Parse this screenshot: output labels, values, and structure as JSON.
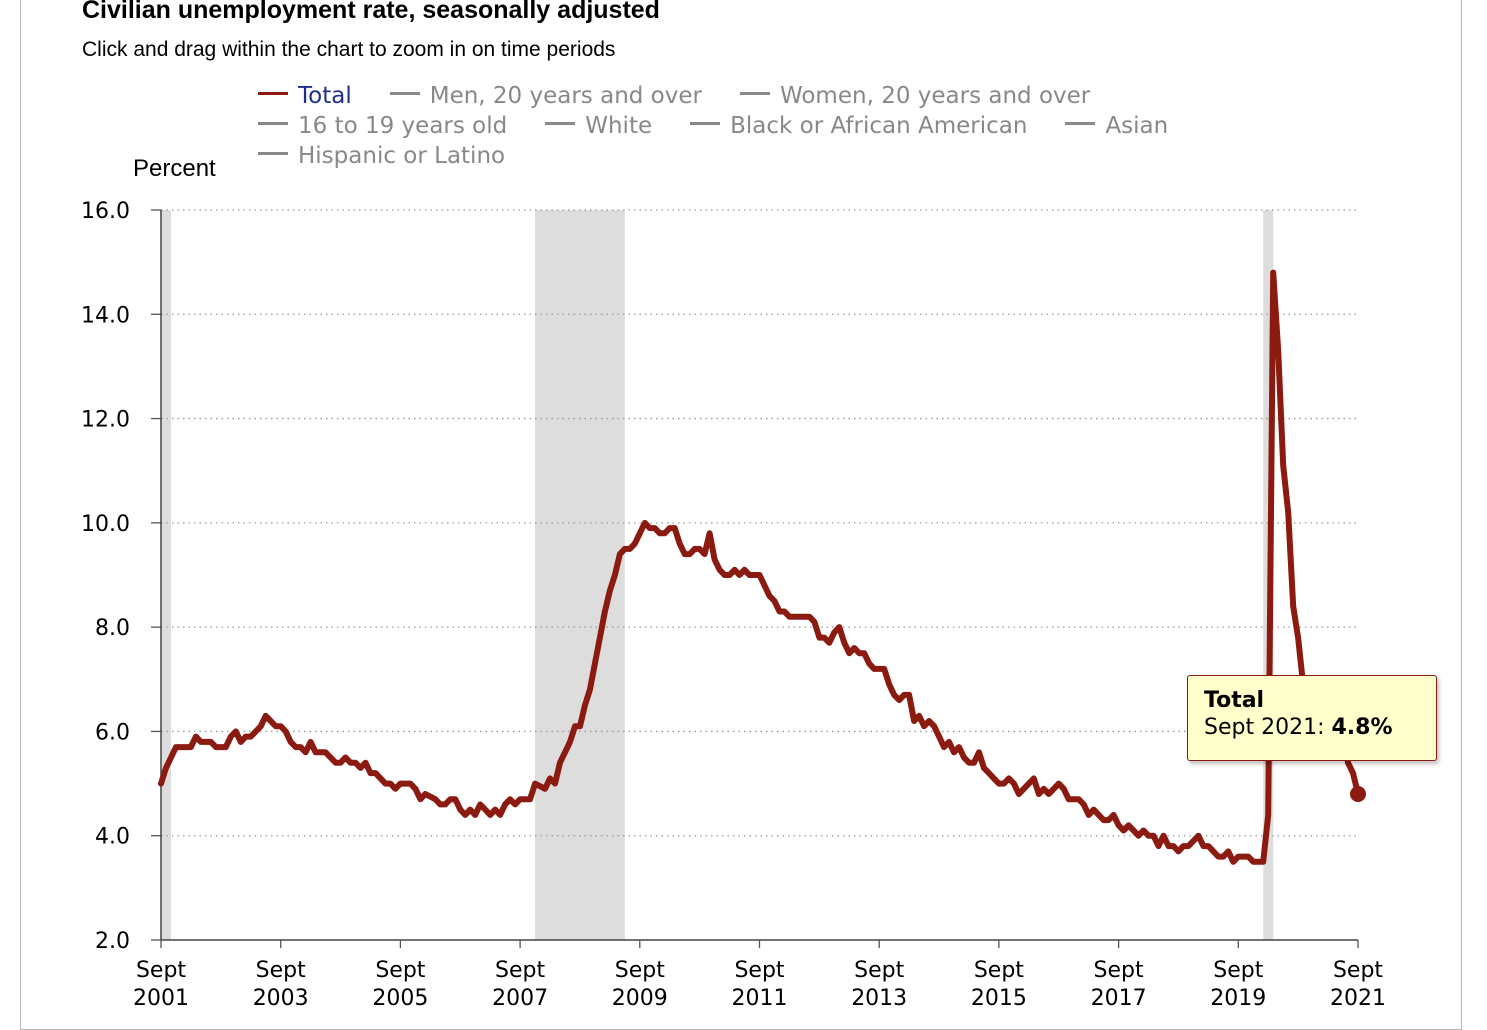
{
  "header": {
    "title": "Civilian unemployment rate, seasonally adjusted",
    "subtitle": "Click and drag within the chart to zoom in on time periods"
  },
  "legend": {
    "items": [
      {
        "label": "Total",
        "color": "#8b1a10",
        "active": true
      },
      {
        "label": "Men, 20 years and over",
        "color": "#888888",
        "active": false
      },
      {
        "label": "Women, 20 years and over",
        "color": "#888888",
        "active": false
      },
      {
        "label": "16 to 19 years old",
        "color": "#888888",
        "active": false
      },
      {
        "label": "White",
        "color": "#888888",
        "active": false
      },
      {
        "label": "Black or African American",
        "color": "#888888",
        "active": false
      },
      {
        "label": "Asian",
        "color": "#888888",
        "active": false
      },
      {
        "label": "Hispanic or Latino",
        "color": "#888888",
        "active": false
      }
    ]
  },
  "tooltip": {
    "series": "Total",
    "period": "Sept 2021: ",
    "value": "4.8%"
  },
  "chart_data": {
    "type": "line",
    "title": "Civilian unemployment rate, seasonally adjusted",
    "ylabel": "Percent",
    "xlabel": "",
    "ylim": [
      2.0,
      16.0
    ],
    "xlim": [
      "2001-09",
      "2021-09"
    ],
    "yticks": [
      "2.0",
      "4.0",
      "6.0",
      "8.0",
      "10.0",
      "12.0",
      "14.0",
      "16.0"
    ],
    "xticks": [
      {
        "month": "Sept",
        "year": "2001",
        "at": "2001-09"
      },
      {
        "month": "Sept",
        "year": "2003",
        "at": "2003-09"
      },
      {
        "month": "Sept",
        "year": "2005",
        "at": "2005-09"
      },
      {
        "month": "Sept",
        "year": "2007",
        "at": "2007-09"
      },
      {
        "month": "Sept",
        "year": "2009",
        "at": "2009-09"
      },
      {
        "month": "Sept",
        "year": "2011",
        "at": "2011-09"
      },
      {
        "month": "Sept",
        "year": "2013",
        "at": "2013-09"
      },
      {
        "month": "Sept",
        "year": "2015",
        "at": "2015-09"
      },
      {
        "month": "Sept",
        "year": "2017",
        "at": "2017-09"
      },
      {
        "month": "Sept",
        "year": "2019",
        "at": "2019-09"
      },
      {
        "month": "Sept",
        "year": "2021",
        "at": "2021-09"
      }
    ],
    "grid": true,
    "legend_position": "top",
    "recessions": [
      {
        "start": "2001-09",
        "end": "2001-11"
      },
      {
        "start": "2007-12",
        "end": "2009-06"
      },
      {
        "start": "2020-02",
        "end": "2020-04"
      }
    ],
    "recession_color": "#dddddd",
    "series": [
      {
        "name": "Total",
        "color": "#8b1a10",
        "points": [
          [
            "2001-09",
            5.0
          ],
          [
            "2001-10",
            5.3
          ],
          [
            "2001-11",
            5.5
          ],
          [
            "2001-12",
            5.7
          ],
          [
            "2002-03",
            5.7
          ],
          [
            "2002-04",
            5.9
          ],
          [
            "2002-05",
            5.8
          ],
          [
            "2002-07",
            5.8
          ],
          [
            "2002-08",
            5.7
          ],
          [
            "2002-10",
            5.7
          ],
          [
            "2002-11",
            5.9
          ],
          [
            "2002-12",
            6.0
          ],
          [
            "2003-01",
            5.8
          ],
          [
            "2003-02",
            5.9
          ],
          [
            "2003-03",
            5.9
          ],
          [
            "2003-05",
            6.1
          ],
          [
            "2003-06",
            6.3
          ],
          [
            "2003-07",
            6.2
          ],
          [
            "2003-08",
            6.1
          ],
          [
            "2003-09",
            6.1
          ],
          [
            "2003-10",
            6.0
          ],
          [
            "2003-11",
            5.8
          ],
          [
            "2003-12",
            5.7
          ],
          [
            "2004-01",
            5.7
          ],
          [
            "2004-02",
            5.6
          ],
          [
            "2004-03",
            5.8
          ],
          [
            "2004-04",
            5.6
          ],
          [
            "2004-06",
            5.6
          ],
          [
            "2004-08",
            5.4
          ],
          [
            "2004-09",
            5.4
          ],
          [
            "2004-10",
            5.5
          ],
          [
            "2004-11",
            5.4
          ],
          [
            "2004-12",
            5.4
          ],
          [
            "2005-01",
            5.3
          ],
          [
            "2005-02",
            5.4
          ],
          [
            "2005-03",
            5.2
          ],
          [
            "2005-04",
            5.2
          ],
          [
            "2005-06",
            5.0
          ],
          [
            "2005-07",
            5.0
          ],
          [
            "2005-08",
            4.9
          ],
          [
            "2005-09",
            5.0
          ],
          [
            "2005-11",
            5.0
          ],
          [
            "2005-12",
            4.9
          ],
          [
            "2006-01",
            4.7
          ],
          [
            "2006-02",
            4.8
          ],
          [
            "2006-04",
            4.7
          ],
          [
            "2006-05",
            4.6
          ],
          [
            "2006-06",
            4.6
          ],
          [
            "2006-07",
            4.7
          ],
          [
            "2006-08",
            4.7
          ],
          [
            "2006-09",
            4.5
          ],
          [
            "2006-10",
            4.4
          ],
          [
            "2006-11",
            4.5
          ],
          [
            "2006-12",
            4.4
          ],
          [
            "2007-01",
            4.6
          ],
          [
            "2007-02",
            4.5
          ],
          [
            "2007-03",
            4.4
          ],
          [
            "2007-04",
            4.5
          ],
          [
            "2007-05",
            4.4
          ],
          [
            "2007-06",
            4.6
          ],
          [
            "2007-07",
            4.7
          ],
          [
            "2007-08",
            4.6
          ],
          [
            "2007-09",
            4.7
          ],
          [
            "2007-11",
            4.7
          ],
          [
            "2007-12",
            5.0
          ],
          [
            "2008-02",
            4.9
          ],
          [
            "2008-03",
            5.1
          ],
          [
            "2008-04",
            5.0
          ],
          [
            "2008-05",
            5.4
          ],
          [
            "2008-06",
            5.6
          ],
          [
            "2008-07",
            5.8
          ],
          [
            "2008-08",
            6.1
          ],
          [
            "2008-09",
            6.1
          ],
          [
            "2008-10",
            6.5
          ],
          [
            "2008-11",
            6.8
          ],
          [
            "2008-12",
            7.3
          ],
          [
            "2009-01",
            7.8
          ],
          [
            "2009-02",
            8.3
          ],
          [
            "2009-03",
            8.7
          ],
          [
            "2009-04",
            9.0
          ],
          [
            "2009-05",
            9.4
          ],
          [
            "2009-06",
            9.5
          ],
          [
            "2009-07",
            9.5
          ],
          [
            "2009-08",
            9.6
          ],
          [
            "2009-09",
            9.8
          ],
          [
            "2009-10",
            10.0
          ],
          [
            "2009-11",
            9.9
          ],
          [
            "2009-12",
            9.9
          ],
          [
            "2010-01",
            9.8
          ],
          [
            "2010-02",
            9.8
          ],
          [
            "2010-03",
            9.9
          ],
          [
            "2010-04",
            9.9
          ],
          [
            "2010-05",
            9.6
          ],
          [
            "2010-06",
            9.4
          ],
          [
            "2010-07",
            9.4
          ],
          [
            "2010-08",
            9.5
          ],
          [
            "2010-09",
            9.5
          ],
          [
            "2010-10",
            9.4
          ],
          [
            "2010-11",
            9.8
          ],
          [
            "2010-12",
            9.3
          ],
          [
            "2011-01",
            9.1
          ],
          [
            "2011-02",
            9.0
          ],
          [
            "2011-03",
            9.0
          ],
          [
            "2011-04",
            9.1
          ],
          [
            "2011-05",
            9.0
          ],
          [
            "2011-06",
            9.1
          ],
          [
            "2011-07",
            9.0
          ],
          [
            "2011-09",
            9.0
          ],
          [
            "2011-10",
            8.8
          ],
          [
            "2011-11",
            8.6
          ],
          [
            "2011-12",
            8.5
          ],
          [
            "2012-01",
            8.3
          ],
          [
            "2012-02",
            8.3
          ],
          [
            "2012-03",
            8.2
          ],
          [
            "2012-06",
            8.2
          ],
          [
            "2012-07",
            8.2
          ],
          [
            "2012-08",
            8.1
          ],
          [
            "2012-09",
            7.8
          ],
          [
            "2012-10",
            7.8
          ],
          [
            "2012-11",
            7.7
          ],
          [
            "2012-12",
            7.9
          ],
          [
            "2013-01",
            8.0
          ],
          [
            "2013-02",
            7.7
          ],
          [
            "2013-03",
            7.5
          ],
          [
            "2013-04",
            7.6
          ],
          [
            "2013-05",
            7.5
          ],
          [
            "2013-06",
            7.5
          ],
          [
            "2013-07",
            7.3
          ],
          [
            "2013-08",
            7.2
          ],
          [
            "2013-09",
            7.2
          ],
          [
            "2013-10",
            7.2
          ],
          [
            "2013-11",
            6.9
          ],
          [
            "2013-12",
            6.7
          ],
          [
            "2014-01",
            6.6
          ],
          [
            "2014-02",
            6.7
          ],
          [
            "2014-03",
            6.7
          ],
          [
            "2014-04",
            6.2
          ],
          [
            "2014-05",
            6.3
          ],
          [
            "2014-06",
            6.1
          ],
          [
            "2014-07",
            6.2
          ],
          [
            "2014-08",
            6.1
          ],
          [
            "2014-09",
            5.9
          ],
          [
            "2014-10",
            5.7
          ],
          [
            "2014-11",
            5.8
          ],
          [
            "2014-12",
            5.6
          ],
          [
            "2015-01",
            5.7
          ],
          [
            "2015-02",
            5.5
          ],
          [
            "2015-03",
            5.4
          ],
          [
            "2015-04",
            5.4
          ],
          [
            "2015-05",
            5.6
          ],
          [
            "2015-06",
            5.3
          ],
          [
            "2015-07",
            5.2
          ],
          [
            "2015-08",
            5.1
          ],
          [
            "2015-09",
            5.0
          ],
          [
            "2015-10",
            5.0
          ],
          [
            "2015-11",
            5.1
          ],
          [
            "2015-12",
            5.0
          ],
          [
            "2016-01",
            4.8
          ],
          [
            "2016-02",
            4.9
          ],
          [
            "2016-03",
            5.0
          ],
          [
            "2016-04",
            5.1
          ],
          [
            "2016-05",
            4.8
          ],
          [
            "2016-06",
            4.9
          ],
          [
            "2016-07",
            4.8
          ],
          [
            "2016-08",
            4.9
          ],
          [
            "2016-09",
            5.0
          ],
          [
            "2016-10",
            4.9
          ],
          [
            "2016-11",
            4.7
          ],
          [
            "2016-12",
            4.7
          ],
          [
            "2017-01",
            4.7
          ],
          [
            "2017-02",
            4.6
          ],
          [
            "2017-03",
            4.4
          ],
          [
            "2017-04",
            4.5
          ],
          [
            "2017-05",
            4.4
          ],
          [
            "2017-06",
            4.3
          ],
          [
            "2017-07",
            4.3
          ],
          [
            "2017-08",
            4.4
          ],
          [
            "2017-09",
            4.2
          ],
          [
            "2017-10",
            4.1
          ],
          [
            "2017-11",
            4.2
          ],
          [
            "2017-12",
            4.1
          ],
          [
            "2018-01",
            4.0
          ],
          [
            "2018-02",
            4.1
          ],
          [
            "2018-03",
            4.0
          ],
          [
            "2018-04",
            4.0
          ],
          [
            "2018-05",
            3.8
          ],
          [
            "2018-06",
            4.0
          ],
          [
            "2018-07",
            3.8
          ],
          [
            "2018-08",
            3.8
          ],
          [
            "2018-09",
            3.7
          ],
          [
            "2018-10",
            3.8
          ],
          [
            "2018-11",
            3.8
          ],
          [
            "2018-12",
            3.9
          ],
          [
            "2019-01",
            4.0
          ],
          [
            "2019-02",
            3.8
          ],
          [
            "2019-03",
            3.8
          ],
          [
            "2019-04",
            3.7
          ],
          [
            "2019-05",
            3.6
          ],
          [
            "2019-06",
            3.6
          ],
          [
            "2019-07",
            3.7
          ],
          [
            "2019-08",
            3.5
          ],
          [
            "2019-09",
            3.6
          ],
          [
            "2019-10",
            3.6
          ],
          [
            "2019-11",
            3.6
          ],
          [
            "2019-12",
            3.5
          ],
          [
            "2020-01",
            3.5
          ],
          [
            "2020-02",
            3.5
          ],
          [
            "2020-03",
            4.4
          ],
          [
            "2020-04",
            14.8
          ],
          [
            "2020-05",
            13.3
          ],
          [
            "2020-06",
            11.1
          ],
          [
            "2020-07",
            10.2
          ],
          [
            "2020-08",
            8.4
          ],
          [
            "2020-09",
            7.8
          ],
          [
            "2020-10",
            6.9
          ],
          [
            "2020-11",
            6.7
          ],
          [
            "2020-12",
            6.7
          ],
          [
            "2021-01",
            6.4
          ],
          [
            "2021-02",
            6.2
          ],
          [
            "2021-03",
            6.0
          ],
          [
            "2021-04",
            6.1
          ],
          [
            "2021-05",
            5.8
          ],
          [
            "2021-06",
            5.9
          ],
          [
            "2021-07",
            5.4
          ],
          [
            "2021-08",
            5.2
          ],
          [
            "2021-09",
            4.8
          ]
        ]
      }
    ]
  }
}
